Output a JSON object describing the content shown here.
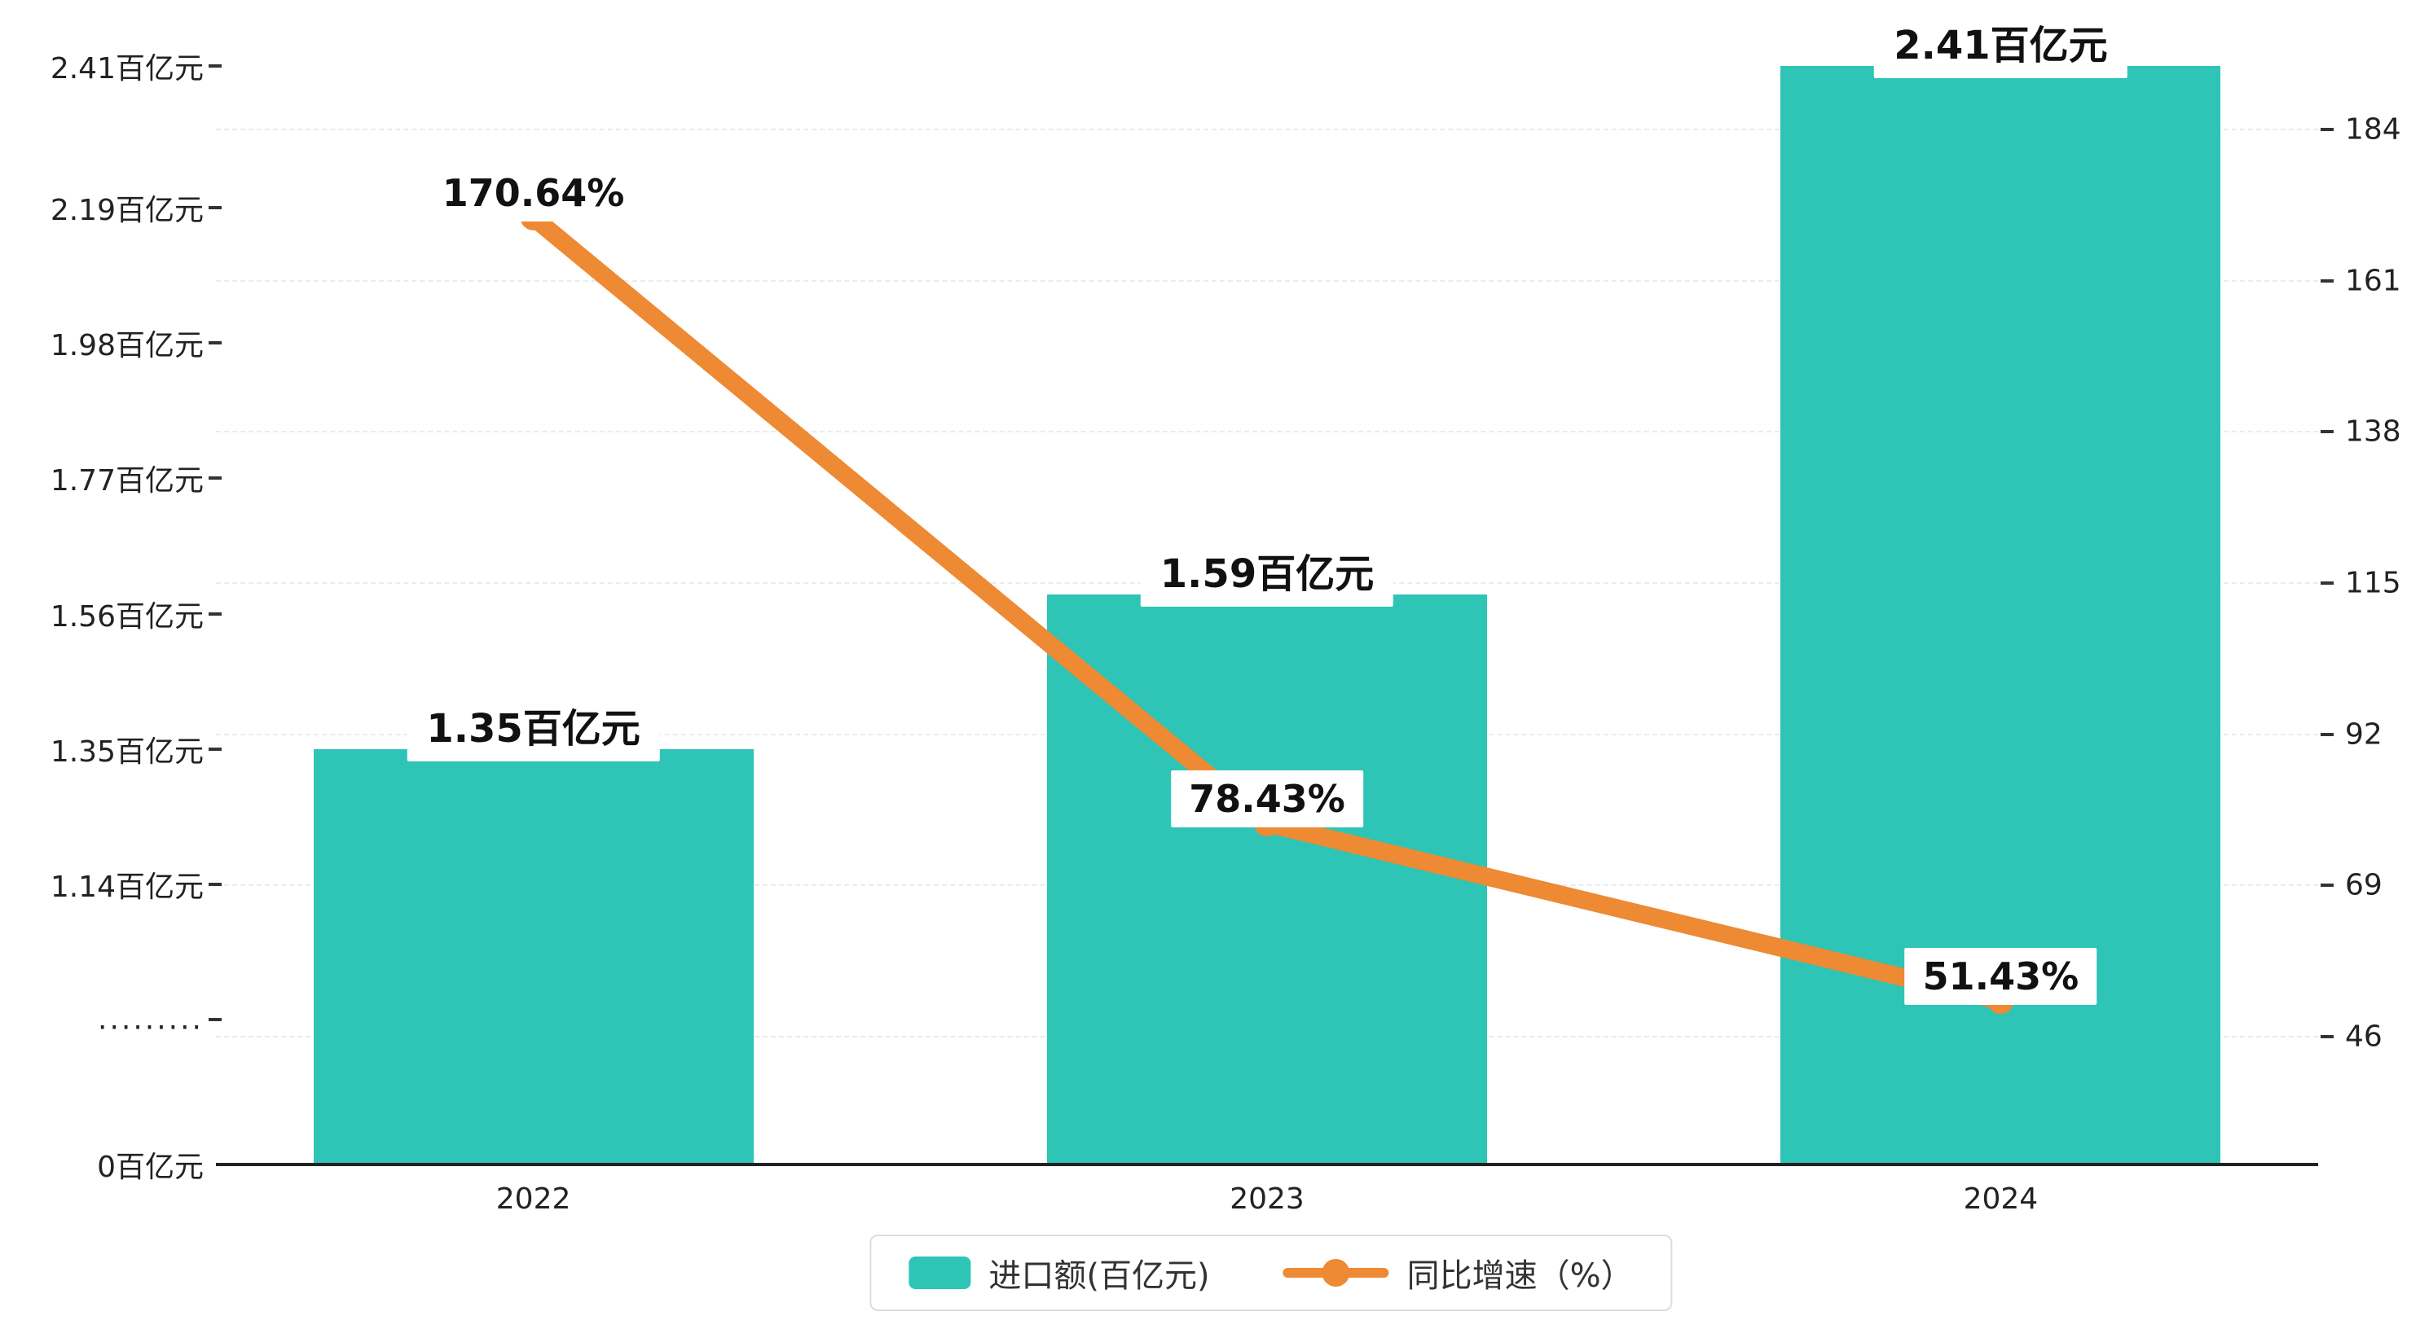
{
  "chart_data": {
    "type": "bar",
    "subtype": "bar-line-combo",
    "categories": [
      "2022",
      "2023",
      "2024"
    ],
    "series": [
      {
        "name": "进口额(百亿元)",
        "type": "bar",
        "axis": "left",
        "values": [
          1.35,
          1.59,
          2.41
        ],
        "labels": [
          "1.35百亿元",
          "1.59百亿元",
          "2.41百亿元"
        ],
        "color": "#2EC4B6"
      },
      {
        "name": "同比增速（%）",
        "type": "line",
        "axis": "right",
        "values": [
          170.64,
          78.43,
          51.43
        ],
        "labels": [
          "170.64%",
          "78.43%",
          "51.43%"
        ],
        "color": "#ED8A33"
      }
    ],
    "left_axis": {
      "tick_labels": [
        "2.41百亿元",
        "2.19百亿元",
        "1.98百亿元",
        "1.77百亿元",
        "1.56百亿元",
        "1.35百亿元",
        "1.14百亿元",
        ".........",
        "0百亿元"
      ],
      "tick_values": [
        2.41,
        2.19,
        1.98,
        1.77,
        1.56,
        1.35,
        1.14,
        null,
        0
      ],
      "broken": true
    },
    "right_axis": {
      "tick_labels": [
        "184",
        "161",
        "138",
        "115",
        "92",
        "69",
        "46"
      ],
      "tick_values": [
        184,
        161,
        138,
        115,
        92,
        69,
        46
      ]
    },
    "legend": {
      "position": "bottom-center",
      "items": [
        {
          "label": "进口额(百亿元)",
          "marker": "bar"
        },
        {
          "label": "同比增速（%）",
          "marker": "line-dot"
        }
      ]
    },
    "grid": "horizontal-dashed"
  },
  "colors": {
    "bar": "#2EC4B6",
    "line": "#ED8A33",
    "axis_text": "#222222",
    "grid_line": "#ebebeb",
    "label_bg": "#ffffff",
    "legend_border": "#dddddd",
    "background": "#ffffff"
  }
}
